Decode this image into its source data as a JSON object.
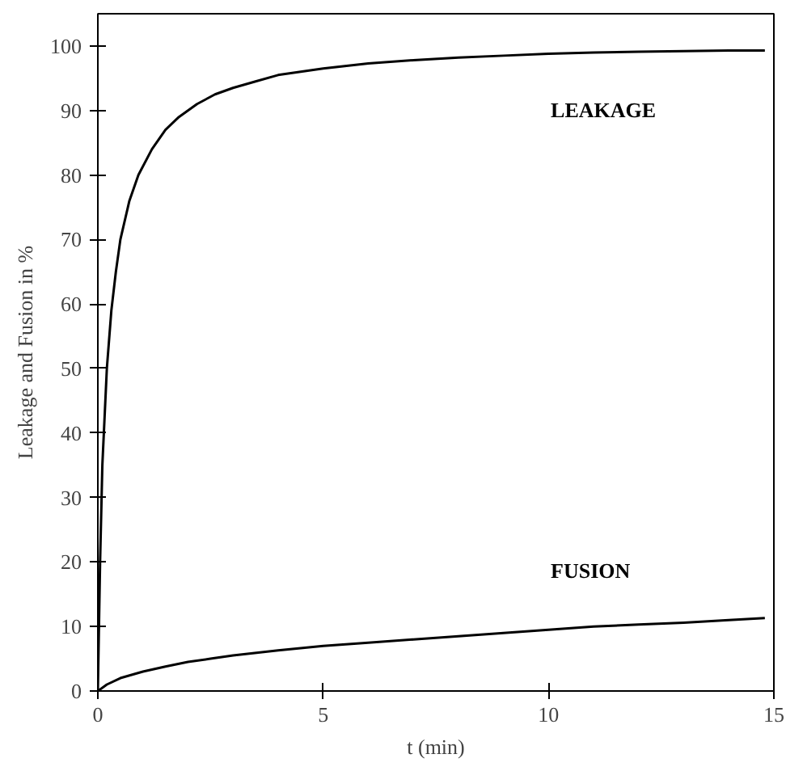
{
  "chart_data": {
    "type": "line",
    "xlabel": "t (min)",
    "ylabel": "Leakage and Fusion in %",
    "xlim": [
      0,
      15
    ],
    "ylim": [
      0,
      105
    ],
    "xticks": [
      0,
      5,
      10,
      15
    ],
    "yticks": [
      0,
      10,
      20,
      30,
      40,
      50,
      60,
      70,
      80,
      90,
      100
    ],
    "grid": false,
    "marker": "none",
    "line_style": "solid",
    "series": [
      {
        "name": "LEAKAGE",
        "color": "#000000",
        "x": [
          0,
          0.05,
          0.1,
          0.2,
          0.3,
          0.4,
          0.5,
          0.7,
          0.9,
          1.2,
          1.5,
          1.8,
          2.2,
          2.6,
          3.0,
          3.5,
          4.0,
          5.0,
          6.0,
          7.0,
          8.0,
          9.0,
          10.0,
          11.0,
          12.0,
          13.0,
          14.0,
          14.8
        ],
        "values": [
          0,
          20,
          35,
          50,
          59,
          65,
          70,
          76,
          80,
          84,
          87,
          89,
          91,
          92.5,
          93.5,
          94.5,
          95.5,
          96.5,
          97.3,
          97.8,
          98.2,
          98.5,
          98.8,
          99.0,
          99.1,
          99.2,
          99.3,
          99.3
        ]
      },
      {
        "name": "FUSION",
        "color": "#000000",
        "x": [
          0,
          0.2,
          0.5,
          1.0,
          1.5,
          2.0,
          2.5,
          3.0,
          4.0,
          5.0,
          6.0,
          7.0,
          8.0,
          9.0,
          10.0,
          11.0,
          12.0,
          13.0,
          14.0,
          14.8
        ],
        "values": [
          0,
          1.0,
          2.0,
          3.0,
          3.8,
          4.5,
          5.0,
          5.5,
          6.3,
          7.0,
          7.5,
          8.0,
          8.5,
          9.0,
          9.5,
          10.0,
          10.3,
          10.6,
          11.0,
          11.3
        ]
      }
    ]
  }
}
